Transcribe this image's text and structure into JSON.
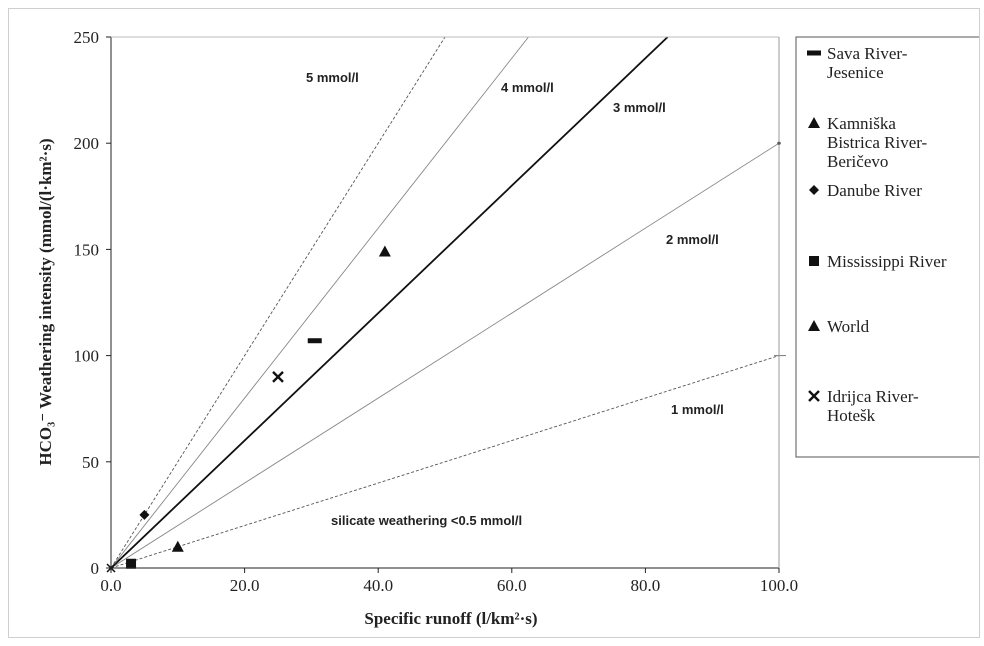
{
  "chart_data": {
    "type": "scatter",
    "xlabel": "Specific runoff  (l/km²·s)",
    "ylabel": "HCO₃⁻  Weathering intensity (mmol/(l·km²·s)",
    "xlim": [
      0,
      100
    ],
    "ylim": [
      0,
      250
    ],
    "x_ticks": [
      "0.0",
      "20.0",
      "40.0",
      "60.0",
      "80.0",
      "100.0"
    ],
    "y_ticks": [
      "0",
      "50",
      "100",
      "150",
      "200",
      "250"
    ],
    "grid": false,
    "legend_position": "right",
    "series": [
      {
        "name": "Sava River-Jesenice",
        "marker": "dash",
        "points": [
          [
            30.5,
            107
          ]
        ]
      },
      {
        "name": "Kamniška Bistrica River-Beričevo",
        "marker": "triangle",
        "points": [
          [
            41,
            149
          ]
        ]
      },
      {
        "name": "Danube River",
        "marker": "diamond",
        "points": [
          [
            5,
            25
          ]
        ]
      },
      {
        "name": "Mississippi River",
        "marker": "square",
        "points": [
          [
            3,
            2
          ]
        ]
      },
      {
        "name": "World",
        "marker": "triangle",
        "points": [
          [
            10,
            10
          ]
        ]
      },
      {
        "name": "Idrijca River-Hotešk",
        "marker": "x",
        "points": [
          [
            25,
            90
          ]
        ]
      }
    ],
    "reference_lines": [
      {
        "label": "1 mmol/l",
        "slope": 1,
        "style": "dashed"
      },
      {
        "label": "2 mmol/l",
        "slope": 2,
        "style": "thin"
      },
      {
        "label": "3 mmol/l",
        "slope": 3,
        "style": "bold"
      },
      {
        "label": "4 mmol/l",
        "slope": 4,
        "style": "thin"
      },
      {
        "label": "5 mmol/l",
        "slope": 5,
        "style": "dashed"
      }
    ],
    "annotations": [
      "silicate weathering <0.5 mmol/l"
    ]
  }
}
